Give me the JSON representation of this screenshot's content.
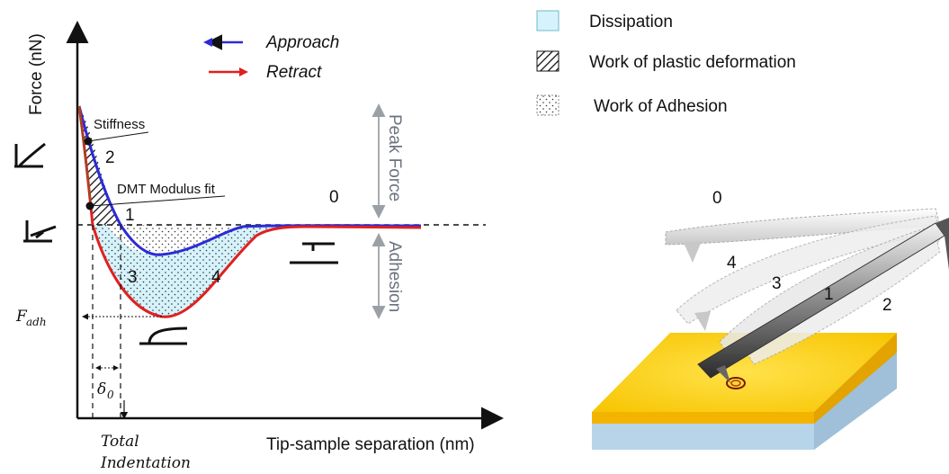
{
  "legend": {
    "approach": "Approach",
    "retract": "Retract",
    "dissipation": "Dissipation",
    "plastic": "Work of plastic deformation",
    "adhesion_work": "Work of Adhesion"
  },
  "axes": {
    "ylabel": "Force (nN)",
    "xlabel": "Tip-sample separation (nm)"
  },
  "annotations": {
    "stiffness": "Stiffness",
    "dmt": "DMT Modulus fit",
    "peak_force": "Peak Force",
    "adhesion": "Adhesion",
    "fadh": "F",
    "fadh_sub": "adh",
    "delta": "δ",
    "delta_sub": "0",
    "total": "Total",
    "indentation": "Indentation"
  },
  "regions": {
    "r0": "0",
    "r1": "1",
    "r2": "2",
    "r3": "3",
    "r4": "4"
  },
  "illustration": {
    "c0": "0",
    "c1": "1",
    "c2": "2",
    "c3": "3",
    "c4": "4"
  },
  "colors": {
    "approach": "#2b2bd6",
    "retract": "#e02020",
    "dissipation": "#d6f3fb",
    "substrate_top": "#ffd21a",
    "substrate_side": "#b8d4e8"
  }
}
